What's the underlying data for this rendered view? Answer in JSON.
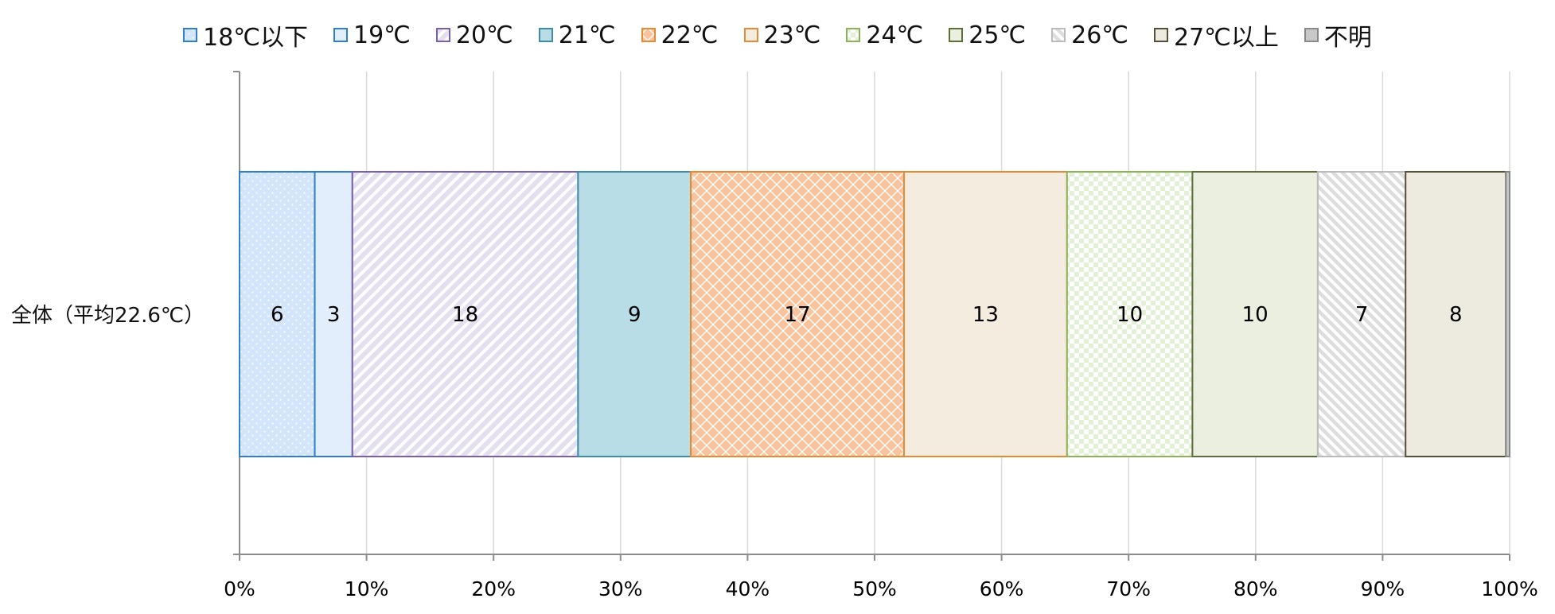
{
  "chart_data": {
    "type": "bar",
    "orientation": "horizontal-stacked-100",
    "categories": [
      "全体（平均22.6℃）"
    ],
    "series": [
      {
        "name": "18℃以下",
        "values": [
          6
        ],
        "label": "6",
        "color": "#2F7ECF",
        "fill": "#D3E5FA",
        "pattern": "dots"
      },
      {
        "name": "19℃",
        "values": [
          3
        ],
        "label": "3",
        "color": "#2F7ECF",
        "fill": "#E3EEFC",
        "pattern": "solid"
      },
      {
        "name": "20℃",
        "values": [
          18
        ],
        "label": "18",
        "color": "#7A60A8",
        "fill": "#E4DFEE",
        "pattern": "diag"
      },
      {
        "name": "21℃",
        "values": [
          9
        ],
        "label": "9",
        "color": "#3E8FA6",
        "fill": "#B8DDE6",
        "pattern": "solid"
      },
      {
        "name": "22℃",
        "values": [
          17
        ],
        "label": "17",
        "color": "#E58A35",
        "fill": "#F8C49E",
        "pattern": "diamond"
      },
      {
        "name": "23℃",
        "values": [
          13
        ],
        "label": "13",
        "color": "#E58A35",
        "fill": "#F5ECE0",
        "pattern": "solid"
      },
      {
        "name": "24℃",
        "values": [
          10
        ],
        "label": "10",
        "color": "#8CB35A",
        "fill": "#E2F0D6",
        "pattern": "checker"
      },
      {
        "name": "25℃",
        "values": [
          10
        ],
        "label": "10",
        "color": "#5C6E3A",
        "fill": "#EAEFDF",
        "pattern": "solid"
      },
      {
        "name": "26℃",
        "values": [
          7
        ],
        "label": "7",
        "color": "#BBBBBB",
        "fill": "#DDDDDD",
        "pattern": "diag2"
      },
      {
        "name": "27℃以上",
        "values": [
          8
        ],
        "label": "8",
        "color": "#55503A",
        "fill": "#EDEBE0",
        "pattern": "solid"
      },
      {
        "name": "不明",
        "values": [
          0.3
        ],
        "label": "",
        "color": "#888888",
        "fill": "#C8C8C8",
        "pattern": "solid"
      }
    ],
    "x_ticks": [
      "0%",
      "10%",
      "20%",
      "30%",
      "40%",
      "50%",
      "60%",
      "70%",
      "80%",
      "90%",
      "100%"
    ],
    "xlim": [
      0,
      100
    ],
    "grid": true,
    "legend_position": "top"
  }
}
